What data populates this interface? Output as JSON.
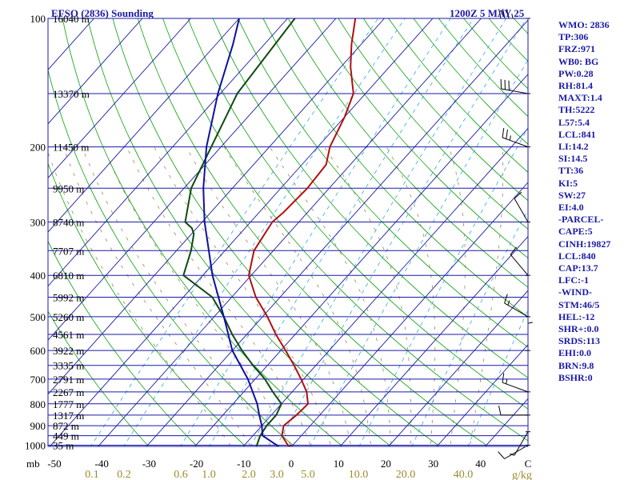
{
  "title": "EFSO (2836) Sounding",
  "valid_time": "1200Z  5 MAY 25",
  "chart_data": {
    "type": "line",
    "subtype": "skew-T log-P sounding",
    "title": "EFSO (2836) Sounding",
    "date_label": "1200Z  5 MAY 25",
    "pressure_unit_label": "mb",
    "mixing_ratio_unit_label": "g/kg",
    "pressure_levels": [
      100,
      200,
      300,
      400,
      500,
      600,
      700,
      800,
      900,
      1000
    ],
    "pressure_labels": [
      "100",
      "200",
      "300",
      "400",
      "500",
      "600",
      "700",
      "800",
      "900",
      "1000"
    ],
    "pressure_range": [
      100,
      1050
    ],
    "temperature_ticks": [
      -50,
      -40,
      -30,
      -20,
      -10,
      0,
      10,
      20,
      30,
      40
    ],
    "temperature_tick_labels": [
      "-50",
      "-40",
      "-30",
      "-20",
      "-10",
      "0",
      "10",
      "20",
      "30",
      "40",
      "C"
    ],
    "mixing_ratio_labels": [
      "0.1",
      "0.2",
      "0.6",
      "1.0",
      "2.0",
      "3.0",
      "5.0",
      "10.0",
      "20.0",
      "40.0"
    ],
    "height_levels": [
      {
        "p": 100,
        "label": "16040 m"
      },
      {
        "p": 150,
        "label": "13370 m"
      },
      {
        "p": 200,
        "label": "11450 m"
      },
      {
        "p": 250,
        "label": "9950 m"
      },
      {
        "p": 300,
        "label": "8740 m"
      },
      {
        "p": 350,
        "label": "7707 m"
      },
      {
        "p": 400,
        "label": "6810 m"
      },
      {
        "p": 450,
        "label": "5992 m"
      },
      {
        "p": 500,
        "label": "5260 m"
      },
      {
        "p": 550,
        "label": "4561 m"
      },
      {
        "p": 600,
        "label": "3922 m"
      },
      {
        "p": 650,
        "label": "3335 m"
      },
      {
        "p": 700,
        "label": "2791 m"
      },
      {
        "p": 750,
        "label": "2267 m"
      },
      {
        "p": 800,
        "label": "1777 m"
      },
      {
        "p": 850,
        "label": "1317 m"
      },
      {
        "p": 900,
        "label": "872 m"
      },
      {
        "p": 950,
        "label": "449 m"
      },
      {
        "p": 1000,
        "label": "35 m"
      }
    ],
    "series": [
      {
        "name": "",
        "color": "#b01010",
        "points": [
          [
            1020,
            1.5
          ],
          [
            1000,
            -1.0
          ],
          [
            950,
            -4.0
          ],
          [
            900,
            -5.5
          ],
          [
            850,
            -4.8
          ],
          [
            800,
            -4.5
          ],
          [
            750,
            -7.0
          ],
          [
            700,
            -10.5
          ],
          [
            650,
            -14.5
          ],
          [
            600,
            -19.0
          ],
          [
            550,
            -24.0
          ],
          [
            500,
            -29.0
          ],
          [
            450,
            -35.0
          ],
          [
            400,
            -40.5
          ],
          [
            350,
            -44.0
          ],
          [
            300,
            -45.5
          ],
          [
            285,
            -45.0
          ],
          [
            250,
            -44.5
          ],
          [
            220,
            -45.0
          ],
          [
            200,
            -47.5
          ],
          [
            170,
            -50.0
          ],
          [
            150,
            -52.5
          ],
          [
            130,
            -58.0
          ],
          [
            115,
            -62.0
          ],
          [
            100,
            -66.0
          ]
        ]
      },
      {
        "name": "",
        "color": "#104a10",
        "points": [
          [
            1020,
            -7.0
          ],
          [
            950,
            -8.5
          ],
          [
            900,
            -9.0
          ],
          [
            850,
            -9.0
          ],
          [
            800,
            -10.0
          ],
          [
            750,
            -14.0
          ],
          [
            700,
            -18.0
          ],
          [
            650,
            -23.0
          ],
          [
            600,
            -28.0
          ],
          [
            550,
            -33.0
          ],
          [
            500,
            -38.0
          ],
          [
            450,
            -44.0
          ],
          [
            400,
            -54.0
          ],
          [
            350,
            -57.0
          ],
          [
            320,
            -59.5
          ],
          [
            310,
            -61.0
          ],
          [
            300,
            -63.5
          ],
          [
            250,
            -68.5
          ],
          [
            200,
            -72.0
          ],
          [
            150,
            -76.5
          ],
          [
            100,
            -78.5
          ]
        ]
      },
      {
        "name": "",
        "color": "#1010a0",
        "points": [
          [
            1020,
            -1.5
          ],
          [
            950,
            -8.0
          ],
          [
            900,
            -10.0
          ],
          [
            850,
            -12.5
          ],
          [
            800,
            -15.0
          ],
          [
            700,
            -21.5
          ],
          [
            600,
            -30.0
          ],
          [
            500,
            -38.0
          ],
          [
            400,
            -48.0
          ],
          [
            300,
            -59.5
          ],
          [
            250,
            -66.0
          ],
          [
            200,
            -73.0
          ],
          [
            150,
            -80.5
          ],
          [
            115,
            -86.5
          ],
          [
            100,
            -90.0
          ]
        ]
      }
    ],
    "wind_barbs": [
      {
        "p": 1000,
        "dir": 240,
        "kt": 10
      },
      {
        "p": 930,
        "dir": 210,
        "kt": 5
      },
      {
        "p": 850,
        "dir": 270,
        "kt": 10
      },
      {
        "p": 750,
        "dir": 290,
        "kt": 15
      },
      {
        "p": 600,
        "dir": 0,
        "kt": 5
      },
      {
        "p": 500,
        "dir": 300,
        "kt": 15
      },
      {
        "p": 400,
        "dir": 320,
        "kt": 10
      },
      {
        "p": 300,
        "dir": 330,
        "kt": 10
      },
      {
        "p": 200,
        "dir": 290,
        "kt": 25
      },
      {
        "p": 150,
        "dir": 280,
        "kt": 30
      },
      {
        "p": 100,
        "dir": 270,
        "kt": 35
      }
    ]
  },
  "indices": [
    "WMO: 2836",
    "TP:306",
    "FRZ:971",
    "WB0: BG",
    "PW:0.28",
    "RH:81.4",
    "MAXT:1.4",
    "TH:5222",
    "L57:5.4",
    "LCL:841",
    "LI:14.2",
    "SI:14.5",
    "TT:36",
    "KI:5",
    "SW:27",
    "EI:4.0",
    "-PARCEL-",
    "CAPE:5",
    "CINH:19827",
    "LCL:840",
    "CAP:13.7",
    "LFC:-1",
    "-WIND-",
    "STM:46/5",
    "HEL:-12",
    "SHR+:0.0",
    "SRDS:113",
    "EHI:0.0",
    "BRN:9.8",
    "BSHR:0"
  ]
}
